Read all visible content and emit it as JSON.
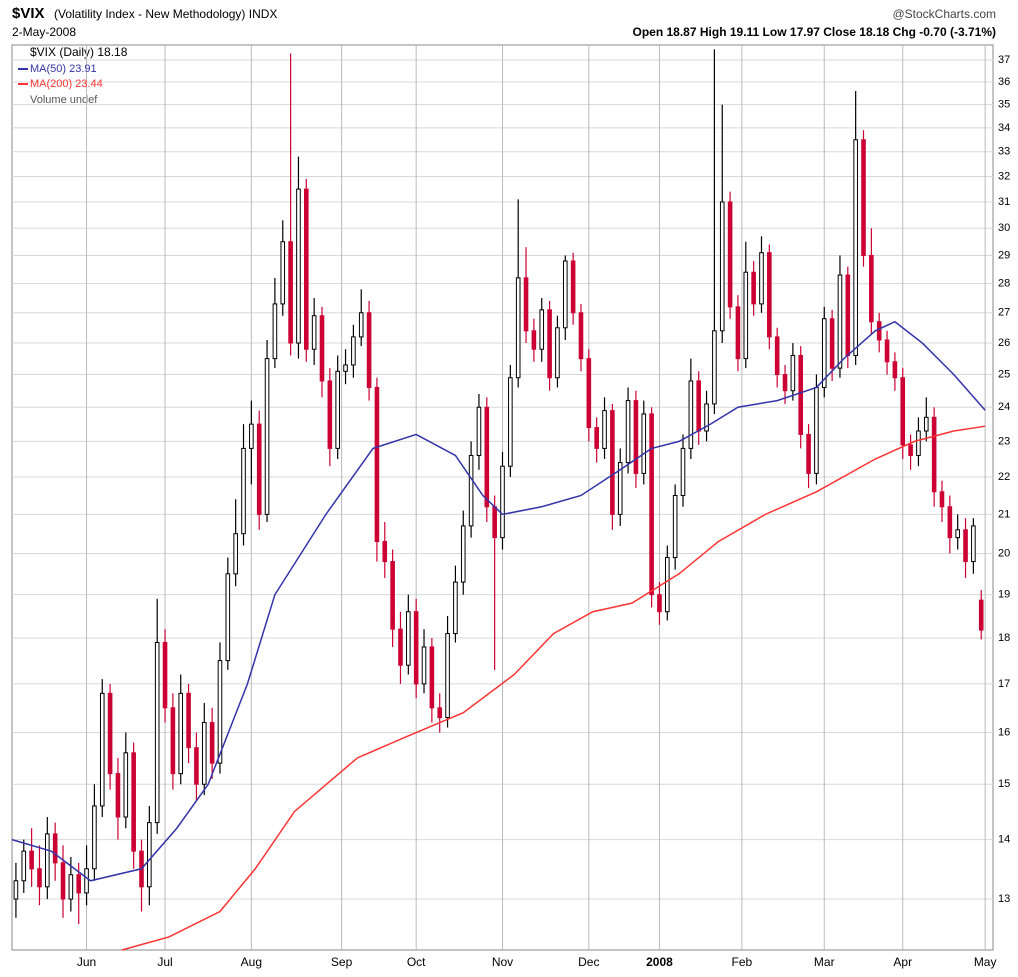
{
  "chart_data": {
    "type": "candlestick",
    "title": "$VIX",
    "subtitle": "(Volatility Index - New Methodology) INDX",
    "source": "@StockCharts.com",
    "date": "2-May-2008",
    "quote": "Open 18.87 High 19.11 Low 17.97 Close 18.18 Chg -0.70 (-3.71%)",
    "price_name": "$VIX (Daily) 18.18",
    "volume_name": "Volume undef",
    "up_color": "#000000",
    "down_color": "#cc0033",
    "log_scale": true,
    "grid": true,
    "ylim": [
      12.2,
      37.7
    ],
    "yticks": [
      13,
      14,
      15,
      16,
      17,
      18,
      19,
      20,
      21,
      22,
      23,
      24,
      25,
      26,
      27,
      28,
      29,
      30,
      31,
      32,
      33,
      34,
      35,
      36,
      37
    ],
    "xlim": [
      0,
      250
    ],
    "xticks": [
      {
        "value": 19,
        "label": "Jun"
      },
      {
        "value": 39,
        "label": "Jul"
      },
      {
        "value": 61,
        "label": "Aug"
      },
      {
        "value": 84,
        "label": "Sep"
      },
      {
        "value": 103,
        "label": "Oct"
      },
      {
        "value": 125,
        "label": "Nov"
      },
      {
        "value": 147,
        "label": "Dec"
      },
      {
        "value": 165,
        "label": "2008"
      },
      {
        "value": 186,
        "label": "Feb"
      },
      {
        "value": 207,
        "label": "Mar"
      },
      {
        "value": 227,
        "label": "Apr"
      },
      {
        "value": 248,
        "label": "May"
      }
    ],
    "x": [
      1,
      3,
      5,
      7,
      9,
      11,
      13,
      15,
      17,
      19,
      21,
      23,
      25,
      27,
      29,
      31,
      33,
      35,
      37,
      39,
      41,
      43,
      45,
      47,
      49,
      51,
      53,
      55,
      57,
      59,
      61,
      63,
      65,
      67,
      69,
      71,
      73,
      75,
      77,
      79,
      81,
      83,
      85,
      87,
      89,
      91,
      93,
      95,
      97,
      99,
      101,
      103,
      105,
      107,
      109,
      111,
      113,
      115,
      117,
      119,
      121,
      123,
      125,
      127,
      129,
      131,
      133,
      135,
      137,
      139,
      141,
      143,
      145,
      147,
      149,
      151,
      153,
      155,
      157,
      159,
      161,
      163,
      165,
      167,
      169,
      171,
      173,
      175,
      177,
      179,
      181,
      183,
      185,
      187,
      189,
      191,
      193,
      195,
      197,
      199,
      201,
      203,
      205,
      207,
      209,
      211,
      213,
      215,
      217,
      219,
      221,
      223,
      225,
      227,
      229,
      231,
      233,
      235,
      237,
      239,
      241,
      243,
      245,
      247
    ],
    "candles": [
      [
        13.0,
        13.6,
        12.7,
        13.3
      ],
      [
        13.3,
        14.0,
        13.1,
        13.8
      ],
      [
        13.8,
        14.2,
        13.2,
        13.5
      ],
      [
        13.5,
        13.9,
        12.9,
        13.2
      ],
      [
        13.2,
        14.4,
        13.0,
        14.1
      ],
      [
        14.1,
        14.3,
        13.3,
        13.6
      ],
      [
        13.6,
        13.9,
        12.7,
        13.0
      ],
      [
        13.0,
        13.7,
        12.8,
        13.4
      ],
      [
        13.4,
        13.6,
        12.6,
        13.1
      ],
      [
        13.1,
        13.9,
        12.9,
        13.5
      ],
      [
        13.5,
        15.0,
        13.3,
        14.6
      ],
      [
        14.6,
        17.1,
        14.4,
        16.8
      ],
      [
        16.8,
        17.0,
        14.9,
        15.2
      ],
      [
        15.2,
        15.5,
        14.0,
        14.4
      ],
      [
        14.4,
        16.0,
        14.2,
        15.6
      ],
      [
        15.6,
        15.8,
        13.5,
        13.8
      ],
      [
        13.8,
        14.0,
        12.8,
        13.2
      ],
      [
        13.2,
        14.6,
        12.9,
        14.3
      ],
      [
        14.3,
        18.9,
        14.1,
        17.9
      ],
      [
        17.9,
        18.2,
        16.2,
        16.5
      ],
      [
        16.5,
        16.8,
        14.9,
        15.2
      ],
      [
        15.2,
        17.2,
        15.0,
        16.8
      ],
      [
        16.8,
        17.0,
        15.4,
        15.7
      ],
      [
        15.7,
        16.0,
        14.7,
        15.0
      ],
      [
        15.0,
        16.6,
        14.8,
        16.2
      ],
      [
        16.2,
        16.5,
        15.1,
        15.4
      ],
      [
        15.4,
        17.9,
        15.2,
        17.5
      ],
      [
        17.5,
        19.9,
        17.3,
        19.5
      ],
      [
        19.5,
        21.4,
        19.2,
        20.5
      ],
      [
        20.5,
        23.5,
        20.2,
        22.8
      ],
      [
        22.8,
        24.2,
        21.8,
        23.5
      ],
      [
        23.5,
        23.9,
        20.6,
        21.0
      ],
      [
        21.0,
        26.1,
        20.8,
        25.5
      ],
      [
        25.5,
        28.2,
        25.2,
        27.3
      ],
      [
        27.3,
        30.3,
        26.9,
        29.5
      ],
      [
        29.5,
        37.3,
        25.6,
        26.0
      ],
      [
        26.0,
        32.8,
        25.5,
        31.5
      ],
      [
        31.5,
        31.9,
        25.4,
        25.8
      ],
      [
        25.8,
        27.5,
        25.3,
        26.9
      ],
      [
        26.9,
        27.2,
        24.3,
        24.8
      ],
      [
        24.8,
        25.2,
        22.3,
        22.8
      ],
      [
        22.8,
        25.6,
        22.5,
        25.1
      ],
      [
        25.1,
        25.8,
        24.7,
        25.3
      ],
      [
        25.3,
        26.6,
        24.9,
        26.2
      ],
      [
        26.2,
        27.8,
        25.9,
        27.0
      ],
      [
        27.0,
        27.4,
        24.2,
        24.6
      ],
      [
        24.6,
        24.9,
        19.8,
        20.3
      ],
      [
        20.3,
        20.8,
        19.4,
        19.8
      ],
      [
        19.8,
        20.1,
        17.8,
        18.2
      ],
      [
        18.2,
        18.6,
        17.0,
        17.4
      ],
      [
        17.4,
        19.0,
        17.2,
        18.6
      ],
      [
        18.6,
        18.9,
        16.7,
        17.0
      ],
      [
        17.0,
        18.2,
        16.8,
        17.8
      ],
      [
        17.8,
        18.0,
        16.2,
        16.5
      ],
      [
        16.5,
        16.8,
        16.0,
        16.3
      ],
      [
        16.3,
        18.5,
        16.1,
        18.1
      ],
      [
        18.1,
        19.7,
        17.9,
        19.3
      ],
      [
        19.3,
        21.1,
        19.0,
        20.7
      ],
      [
        20.7,
        23.0,
        20.4,
        22.6
      ],
      [
        22.6,
        24.4,
        22.2,
        24.0
      ],
      [
        24.0,
        24.3,
        20.8,
        21.2
      ],
      [
        21.2,
        21.5,
        17.3,
        20.4
      ],
      [
        20.4,
        22.7,
        20.1,
        22.3
      ],
      [
        22.3,
        25.3,
        22.0,
        24.9
      ],
      [
        24.9,
        31.1,
        24.6,
        28.2
      ],
      [
        28.2,
        29.3,
        26.0,
        26.4
      ],
      [
        26.4,
        26.8,
        25.4,
        25.8
      ],
      [
        25.8,
        27.5,
        25.4,
        27.1
      ],
      [
        27.1,
        27.4,
        24.5,
        24.9
      ],
      [
        24.9,
        26.9,
        24.6,
        26.5
      ],
      [
        26.5,
        29.0,
        26.1,
        28.8
      ],
      [
        28.8,
        29.1,
        26.6,
        27.0
      ],
      [
        27.0,
        27.3,
        25.1,
        25.5
      ],
      [
        25.5,
        25.8,
        23.0,
        23.4
      ],
      [
        23.4,
        23.7,
        22.4,
        22.8
      ],
      [
        22.8,
        24.3,
        22.5,
        23.9
      ],
      [
        23.9,
        24.1,
        20.6,
        21.0
      ],
      [
        21.0,
        22.8,
        20.7,
        22.4
      ],
      [
        22.4,
        24.6,
        22.1,
        24.2
      ],
      [
        24.2,
        24.5,
        21.7,
        22.1
      ],
      [
        22.1,
        24.2,
        21.8,
        23.8
      ],
      [
        23.8,
        24.0,
        18.7,
        19.0
      ],
      [
        19.0,
        19.3,
        18.3,
        18.6
      ],
      [
        18.6,
        20.2,
        18.4,
        19.9
      ],
      [
        19.9,
        21.8,
        19.6,
        21.5
      ],
      [
        21.5,
        23.2,
        21.2,
        22.8
      ],
      [
        22.8,
        25.5,
        22.5,
        24.8
      ],
      [
        24.8,
        25.1,
        22.9,
        23.3
      ],
      [
        23.3,
        24.5,
        23.0,
        24.1
      ],
      [
        24.1,
        37.5,
        23.8,
        26.4
      ],
      [
        26.4,
        35.0,
        26.0,
        31.0
      ],
      [
        31.0,
        31.4,
        26.8,
        27.2
      ],
      [
        27.2,
        27.6,
        25.1,
        25.5
      ],
      [
        25.5,
        29.5,
        25.2,
        28.4
      ],
      [
        28.4,
        28.8,
        26.9,
        27.3
      ],
      [
        27.3,
        29.7,
        27.0,
        29.1
      ],
      [
        29.1,
        29.4,
        25.8,
        26.2
      ],
      [
        26.2,
        26.5,
        24.6,
        25.0
      ],
      [
        25.0,
        25.3,
        24.1,
        24.5
      ],
      [
        24.5,
        26.0,
        24.2,
        25.6
      ],
      [
        25.6,
        25.9,
        22.8,
        23.2
      ],
      [
        23.2,
        23.5,
        21.7,
        22.1
      ],
      [
        22.1,
        25.0,
        21.8,
        24.6
      ],
      [
        24.6,
        27.2,
        24.3,
        26.8
      ],
      [
        26.8,
        27.1,
        24.8,
        25.2
      ],
      [
        25.2,
        29.0,
        24.9,
        28.3
      ],
      [
        28.3,
        28.6,
        25.2,
        25.6
      ],
      [
        25.6,
        35.6,
        25.3,
        33.5
      ],
      [
        33.5,
        33.9,
        28.6,
        29.0
      ],
      [
        29.0,
        30.0,
        26.3,
        26.7
      ],
      [
        26.7,
        27.0,
        25.7,
        26.1
      ],
      [
        26.1,
        26.4,
        25.0,
        25.4
      ],
      [
        25.4,
        25.7,
        24.5,
        24.9
      ],
      [
        24.9,
        25.2,
        22.5,
        22.9
      ],
      [
        22.9,
        23.2,
        22.2,
        22.6
      ],
      [
        22.6,
        23.7,
        22.3,
        23.3
      ],
      [
        23.3,
        24.3,
        23.0,
        23.7
      ],
      [
        23.7,
        24.0,
        21.2,
        21.6
      ],
      [
        21.6,
        21.9,
        20.8,
        21.2
      ],
      [
        21.2,
        21.5,
        20.0,
        20.4
      ],
      [
        20.4,
        21.0,
        20.1,
        20.6
      ],
      [
        20.6,
        20.9,
        19.4,
        19.8
      ],
      [
        19.8,
        20.9,
        19.5,
        20.7
      ],
      [
        18.87,
        19.11,
        17.97,
        18.18
      ]
    ],
    "series": [
      {
        "name": "MA(50) 23.91",
        "color": "#3333aa",
        "x": [
          0,
          10,
          20,
          33,
          42,
          50,
          60,
          67,
          80,
          92,
          103,
          113,
          120,
          125,
          135,
          145,
          155,
          163,
          170,
          178,
          185,
          195,
          205,
          212,
          220,
          225,
          232,
          240,
          248
        ],
        "values": [
          14.0,
          13.8,
          13.3,
          13.5,
          14.2,
          15.0,
          17.0,
          19.0,
          21.0,
          22.8,
          23.2,
          22.6,
          21.5,
          21.0,
          21.2,
          21.5,
          22.2,
          22.8,
          23.0,
          23.5,
          24.0,
          24.2,
          24.6,
          25.5,
          26.4,
          26.7,
          26.0,
          25.0,
          23.91
        ]
      },
      {
        "name": "MA(200) 23.44",
        "color": "#ff3333",
        "x": [
          28,
          40,
          53,
          62,
          72,
          88,
          100,
          115,
          128,
          138,
          148,
          158,
          170,
          180,
          192,
          205,
          220,
          230,
          240,
          248
        ],
        "values": [
          12.2,
          12.4,
          12.8,
          13.5,
          14.5,
          15.5,
          15.9,
          16.4,
          17.2,
          18.1,
          18.6,
          18.8,
          19.5,
          20.3,
          21.0,
          21.6,
          22.5,
          23.0,
          23.3,
          23.44
        ]
      }
    ]
  }
}
